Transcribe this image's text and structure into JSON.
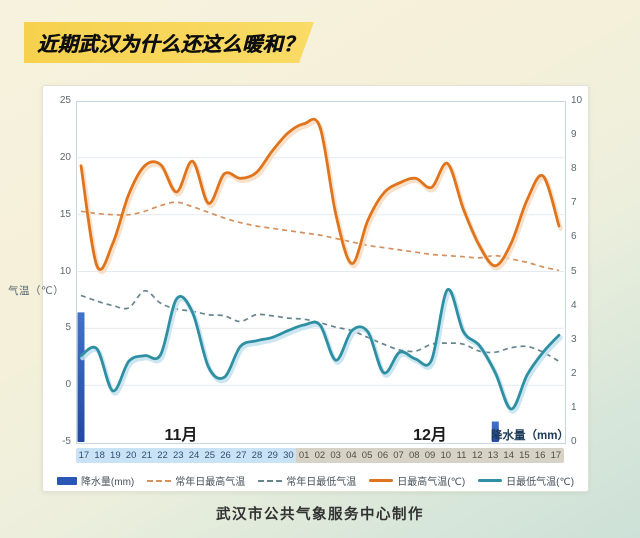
{
  "title": {
    "banner_text": "近期武汉为什么还这么暖和？"
  },
  "footer": {
    "credit": "武汉市公共气象服务中心制作"
  },
  "chart_data": {
    "type": "line",
    "categories": [
      "17",
      "18",
      "19",
      "20",
      "21",
      "22",
      "23",
      "24",
      "25",
      "26",
      "27",
      "28",
      "29",
      "30",
      "01",
      "02",
      "03",
      "04",
      "05",
      "06",
      "07",
      "08",
      "09",
      "10",
      "11",
      "12",
      "13",
      "14",
      "15",
      "16",
      "17"
    ],
    "x_axis": {
      "november_label": "11月",
      "december_label": "12月",
      "november_days": 14
    },
    "y_left": {
      "label": "气温（℃）",
      "ticks": [
        25,
        20,
        15,
        10,
        5,
        0,
        -5
      ],
      "min": -5,
      "max": 25
    },
    "y_right": {
      "label": "降水量（mm）",
      "ticks": [
        10,
        9,
        8,
        7,
        6,
        5,
        4,
        3,
        2,
        1,
        0
      ],
      "min": 0,
      "max": 10
    },
    "legend_position": "bottom",
    "grid": "horizontal",
    "series": [
      {
        "key": "precipitation",
        "name": "降水量(mm)",
        "type": "bar",
        "axis": "right",
        "color": "#2a57b4",
        "color_top": "#4273cb",
        "color_bottom": "#2148a4",
        "values": [
          3.8,
          0,
          0,
          0,
          0,
          0,
          0,
          0,
          0,
          0,
          0,
          0,
          0,
          0,
          0,
          0,
          0,
          0,
          0,
          0,
          0,
          0,
          0,
          0,
          0,
          0,
          0.6,
          0,
          0,
          0,
          0
        ]
      },
      {
        "key": "normal_max",
        "name": "常年日最高气温",
        "type": "line-dashed",
        "axis": "left",
        "color": "#d6905e",
        "values": [
          15.3,
          15.1,
          15.0,
          15.0,
          15.3,
          15.8,
          16.1,
          15.7,
          15.2,
          14.7,
          14.3,
          14.0,
          13.8,
          13.6,
          13.4,
          13.2,
          12.9,
          12.6,
          12.3,
          12.1,
          11.9,
          11.7,
          11.5,
          11.4,
          11.3,
          11.2,
          11.4,
          11.1,
          10.8,
          10.4,
          10.1
        ]
      },
      {
        "key": "normal_min",
        "name": "常年日最低气温",
        "type": "line-dashed",
        "axis": "left",
        "color": "#66858e",
        "values": [
          7.9,
          7.4,
          7.0,
          6.8,
          8.3,
          7.2,
          6.7,
          6.5,
          6.2,
          6.1,
          5.6,
          6.2,
          6.1,
          5.9,
          5.8,
          5.5,
          5.1,
          4.8,
          4.2,
          3.6,
          3.1,
          3.0,
          3.6,
          3.7,
          3.6,
          3.0,
          2.9,
          3.3,
          3.4,
          2.9,
          2.1
        ]
      },
      {
        "key": "daily_max",
        "name": "日最高气温(℃)",
        "type": "line",
        "axis": "left",
        "color": "#e0741d",
        "halo": "#f6dcc2",
        "values": [
          19.3,
          10.5,
          12.5,
          16.8,
          19.3,
          19.4,
          17.0,
          19.7,
          16.0,
          18.6,
          18.2,
          18.7,
          20.6,
          22.2,
          23.0,
          22.7,
          15.0,
          10.7,
          14.5,
          16.9,
          17.8,
          18.2,
          17.4,
          19.5,
          15.5,
          12.3,
          10.5,
          12.5,
          16.3,
          18.4,
          14.0
        ]
      },
      {
        "key": "daily_min",
        "name": "日最低气温(℃)",
        "type": "line",
        "axis": "left",
        "color": "#2e8fa3",
        "halo": "#c2e0ee",
        "values": [
          2.6,
          3.2,
          -0.5,
          2.1,
          2.6,
          2.7,
          7.6,
          6.4,
          1.6,
          0.7,
          3.4,
          3.9,
          4.2,
          4.8,
          5.3,
          5.3,
          2.2,
          4.8,
          4.7,
          1.1,
          2.9,
          2.3,
          2.2,
          8.4,
          4.7,
          3.5,
          1.1,
          -2.1,
          0.9,
          2.9,
          4.4
        ]
      }
    ]
  }
}
